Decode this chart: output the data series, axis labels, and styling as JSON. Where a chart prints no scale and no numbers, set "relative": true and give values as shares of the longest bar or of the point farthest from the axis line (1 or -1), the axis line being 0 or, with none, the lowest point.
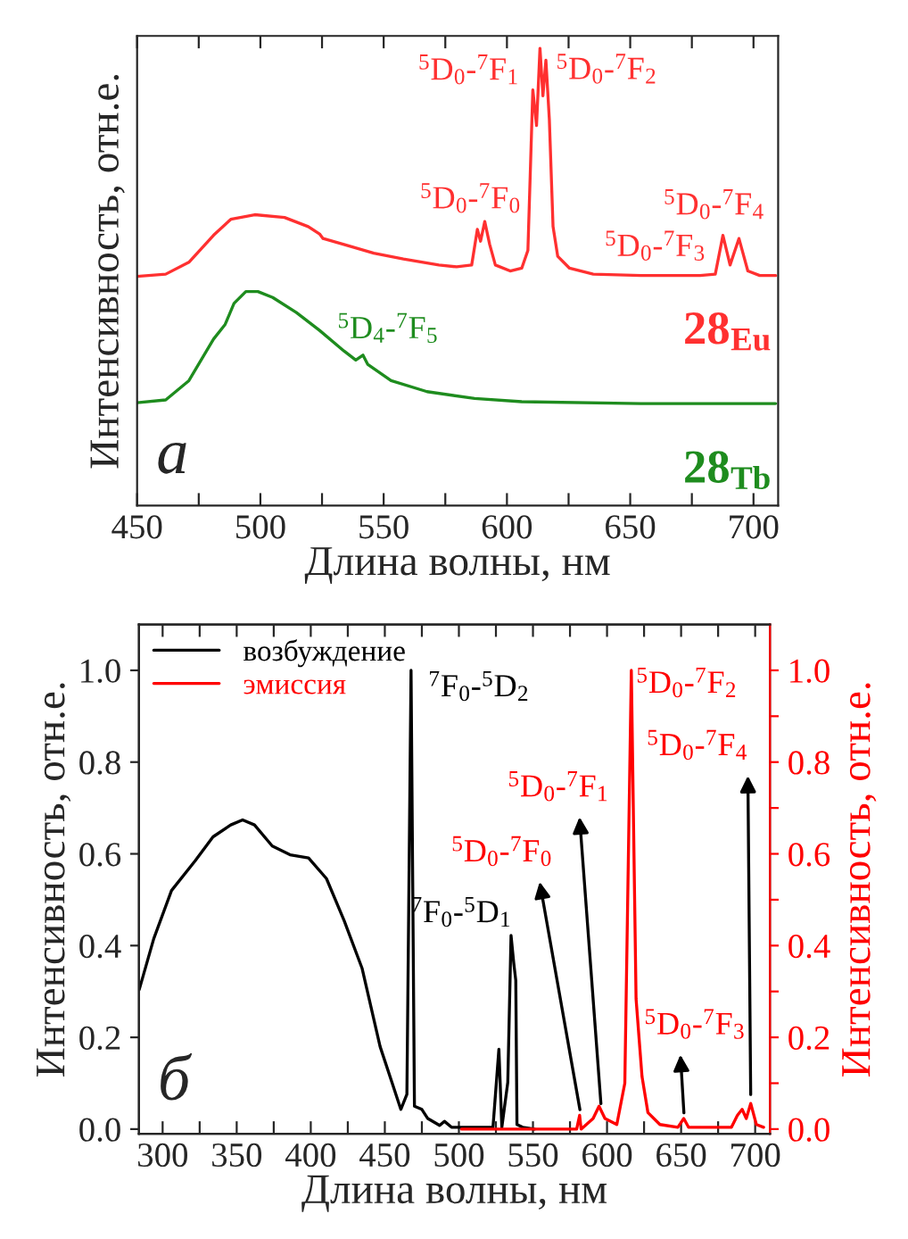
{
  "chart_data": [
    {
      "type": "line",
      "relative": true,
      "xlabel": "Длина волны, нм",
      "ylabel": "Интенсивность, отн.е.",
      "xlim": [
        450,
        710
      ],
      "xticks": [
        450,
        {
          "value": 475,
          "label": null
        },
        500,
        {
          "value": 525,
          "label": null
        },
        550,
        {
          "value": 575,
          "label": null
        },
        600,
        {
          "value": 625,
          "label": null
        },
        650,
        {
          "value": 675,
          "label": null
        },
        700
      ],
      "tick_labels": "x",
      "grid": false,
      "legend": false,
      "marker": "none",
      "line_style": "solid",
      "series": [
        {
          "name": "28$_{Eu}$",
          "color": "#ff3030",
          "x": [
            450,
            461.6,
            471,
            481,
            488,
            497.7,
            509.8,
            519.4,
            524,
            525.4,
            533.9,
            546,
            558,
            572.4,
            579.6,
            585.7,
            588,
            589.3,
            591,
            593,
            595.3,
            601.3,
            606,
            608.5,
            610.5,
            612,
            613.4,
            614.6,
            615.8,
            617.2,
            618.7,
            620.6,
            625.4,
            635,
            654.3,
            678.4,
            684.5,
            687.6,
            690.5,
            694.1,
            697.7,
            702.5,
            709
          ],
          "values": [
            0.501,
            0.506,
            0.532,
            0.591,
            0.626,
            0.636,
            0.63,
            0.61,
            0.594,
            0.584,
            0.571,
            0.552,
            0.539,
            0.526,
            0.522,
            0.526,
            0.604,
            0.578,
            0.621,
            0.571,
            0.526,
            0.513,
            0.519,
            0.558,
            0.909,
            0.831,
            1.0,
            0.896,
            0.974,
            0.844,
            0.61,
            0.545,
            0.519,
            0.506,
            0.503,
            0.503,
            0.506,
            0.591,
            0.526,
            0.584,
            0.513,
            0.503,
            0.503
          ]
        },
        {
          "name": "28$_{Tb}$",
          "color": "#1e8c1e",
          "x": [
            450,
            461.6,
            471,
            481,
            485.7,
            489.3,
            494.1,
            499,
            505,
            514.6,
            524,
            533.9,
            538.7,
            541.6,
            543.5,
            553,
            567.6,
            586.9,
            606,
            654.3,
            709
          ],
          "values": [
            0.225,
            0.231,
            0.273,
            0.364,
            0.396,
            0.442,
            0.468,
            0.468,
            0.455,
            0.422,
            0.383,
            0.338,
            0.318,
            0.329,
            0.309,
            0.273,
            0.249,
            0.234,
            0.227,
            0.223,
            0.223
          ]
        }
      ],
      "annotations": [
        {
          "text": "$^{5}$D$_{0}$-$^{7}$F$_{1}$",
          "x": 613.4,
          "y": 1.0
        },
        {
          "text": "$^{5}$D$_{0}$-$^{7}$F$_{2}$",
          "x": 615.8,
          "y": 0.974
        },
        {
          "text": "$^{5}$D$_{0}$-$^{7}$F$_{0}$",
          "x": 591,
          "y": 0.621
        },
        {
          "text": "$^{5}$D$_{0}$-$^{7}$F$_{3}$",
          "x": 687.6,
          "y": 0.591
        },
        {
          "text": "$^{5}$D$_{0}$-$^{7}$F$_{4}$",
          "x": 694.1,
          "y": 0.584
        },
        {
          "text": "$^{5}$D$_{4}$-$^{7}$F$_{5}$",
          "x": 541.6,
          "y": 0.329
        },
        "а"
      ]
    },
    {
      "type": "line",
      "xlabel": "Длина волны, нм",
      "ylabel": "Интенсивность, отн.е.",
      "y2label": "Интенсивность, отн.е.",
      "xlim": [
        284,
        710
      ],
      "xticks": [
        300,
        {
          "value": 325,
          "label": null
        },
        350,
        {
          "value": 375,
          "label": null
        },
        400,
        {
          "value": 425,
          "label": null
        },
        450,
        {
          "value": 475,
          "label": null
        },
        500,
        {
          "value": 525,
          "label": null
        },
        550,
        {
          "value": 575,
          "label": null
        },
        600,
        {
          "value": 625,
          "label": null
        },
        650,
        {
          "value": 675,
          "label": null
        },
        700
      ],
      "ylim": [
        -0.01,
        1.1
      ],
      "yticks": [
        {
          "value": 0,
          "label": "0.0"
        },
        {
          "value": 0.2,
          "label": "0.2"
        },
        {
          "value": 0.4,
          "label": "0.4"
        },
        {
          "value": 0.6,
          "label": "0.6"
        },
        {
          "value": 0.8,
          "label": "0.8"
        },
        {
          "value": 1.0,
          "label": "1.0"
        }
      ],
      "y2lim": [
        -0.01,
        1.1
      ],
      "y2ticks": [
        {
          "value": 0,
          "label": "0.0"
        },
        {
          "value": 0.1,
          "label": null
        },
        {
          "value": 0.2,
          "label": "0.2"
        },
        {
          "value": 0.3,
          "label": null
        },
        {
          "value": 0.4,
          "label": "0.4"
        },
        {
          "value": 0.5,
          "label": null
        },
        {
          "value": 0.6,
          "label": "0.6"
        },
        {
          "value": 0.7,
          "label": null
        },
        {
          "value": 0.8,
          "label": "0.8"
        },
        {
          "value": 0.9,
          "label": null
        },
        {
          "value": 1.0,
          "label": "1.0"
        }
      ],
      "grid": false,
      "legend": "top left",
      "marker": "none",
      "line_style": "solid",
      "series": [
        {
          "name": "возбуждение",
          "color": "#000000",
          "x": [
            284.2,
            294,
            306,
            322,
            334,
            346,
            354,
            362,
            374,
            386,
            398.5,
            410.6,
            422.6,
            434.7,
            446.8,
            454.8,
            460.8,
            464.9,
            467.7,
            470,
            475,
            479,
            487,
            490.2,
            495,
            523,
            527,
            529,
            533,
            535.2,
            537,
            538.4,
            539.2,
            543,
            551
          ],
          "values": [
            0.304,
            0.415,
            0.52,
            0.585,
            0.637,
            0.663,
            0.674,
            0.663,
            0.617,
            0.598,
            0.591,
            0.546,
            0.454,
            0.35,
            0.18,
            0.102,
            0.043,
            0.076,
            1.0,
            0.05,
            0.043,
            0.023,
            0.008,
            0.017,
            0.004,
            0.004,
            0.174,
            0.004,
            0.102,
            0.422,
            0.363,
            0.324,
            0.01,
            0.004,
            0.0
          ]
        },
        {
          "name": "эмиссия",
          "color": "#ff0000",
          "axis": "y2",
          "x": [
            501.8,
            579.5,
            581.5,
            582.5,
            590.6,
            594.6,
            598.6,
            606.6,
            612,
            616.4,
            619.6,
            623.6,
            627.6,
            635.7,
            647.8,
            651.8,
            655,
            684,
            688,
            691.2,
            694,
            697,
            700.8,
            705.7
          ],
          "values": [
            0.0,
            0.0,
            0.03,
            0.0,
            0.023,
            0.05,
            0.023,
            0.01,
            0.1,
            1.0,
            0.284,
            0.115,
            0.036,
            0.01,
            0.004,
            0.023,
            0.004,
            0.004,
            0.03,
            0.043,
            0.023,
            0.056,
            0.01,
            0.004
          ]
        }
      ],
      "annotations": [
        {
          "text": "$^{7}$F$_{0}$-$^{5}$D$_{2}$",
          "x": 467.7,
          "y": 1.0
        },
        {
          "text": "$^{7}$F$_{0}$-$^{5}$D$_{1}$",
          "x": 535.2,
          "y": 0.422
        },
        {
          "text": "$^{5}$D$_{0}$-$^{7}$F$_{0}$",
          "x": 582,
          "y": 0.037
        },
        {
          "text": "$^{5}$D$_{0}$-$^{7}$F$_{1}$",
          "x": 596,
          "y": 0.05
        },
        {
          "text": "$^{5}$D$_{0}$-$^{7}$F$_{2}$",
          "x": 616.4,
          "y": 1.0
        },
        {
          "text": "$^{5}$D$_{0}$-$^{7}$F$_{3}$",
          "x": 652,
          "y": 0.03
        },
        {
          "text": "$^{5}$D$_{0}$-$^{7}$F$_{4}$",
          "x": 697,
          "y": 0.07
        },
        "б"
      ]
    }
  ]
}
